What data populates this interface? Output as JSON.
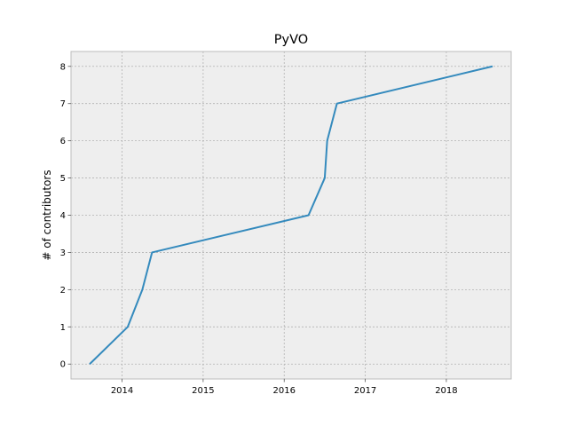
{
  "chart_data": {
    "type": "line",
    "title": "PyVO",
    "xlabel": "",
    "ylabel": "# of contributors",
    "x_ticks": [
      "2014",
      "2015",
      "2016",
      "2017",
      "2018"
    ],
    "y_ticks": [
      0,
      1,
      2,
      3,
      4,
      5,
      6,
      7,
      8
    ],
    "xlim": [
      2013.37,
      2018.8
    ],
    "ylim": [
      -0.4,
      8.4
    ],
    "grid": true,
    "series": [
      {
        "color": "#348abd",
        "x": [
          2013.6,
          2014.07,
          2014.25,
          2014.37,
          2016.3,
          2016.5,
          2016.53,
          2016.65,
          2018.57
        ],
        "y": [
          0,
          1,
          2,
          3,
          4,
          5,
          6,
          7,
          8
        ]
      }
    ]
  },
  "colors": {
    "plot_background": "#eeeeee",
    "grid": "#b2b2b2",
    "axes_edge": "#bcbcbc",
    "line": "#348abd"
  }
}
